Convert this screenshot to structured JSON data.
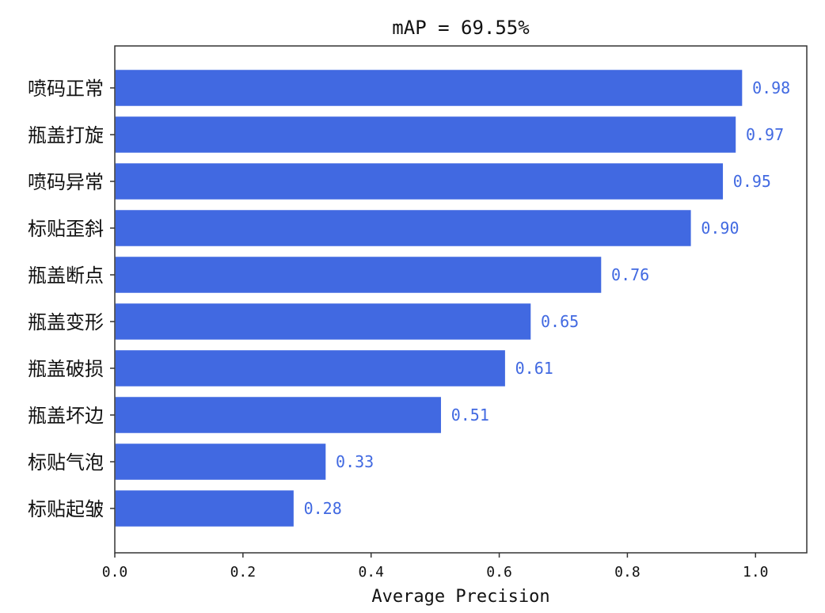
{
  "chart_data": {
    "type": "bar",
    "orientation": "horizontal",
    "title": "mAP = 69.55%",
    "xlabel": "Average Precision",
    "ylabel": "",
    "xlim": [
      0,
      1.08
    ],
    "x_ticks": [
      "0.0",
      "0.2",
      "0.4",
      "0.6",
      "0.8",
      "1.0"
    ],
    "categories": [
      "喷码正常",
      "瓶盖打旋",
      "喷码异常",
      "标贴歪斜",
      "瓶盖断点",
      "瓶盖变形",
      "瓶盖破损",
      "瓶盖坏边",
      "标贴气泡",
      "标贴起皱"
    ],
    "values": [
      0.98,
      0.97,
      0.95,
      0.9,
      0.76,
      0.65,
      0.61,
      0.51,
      0.33,
      0.28
    ],
    "value_labels": [
      "0.98",
      "0.97",
      "0.95",
      "0.90",
      "0.76",
      "0.65",
      "0.61",
      "0.51",
      "0.33",
      "0.28"
    ],
    "bar_color": "#4169e1",
    "label_color": "#4169e1",
    "grid": false,
    "legend": false
  }
}
